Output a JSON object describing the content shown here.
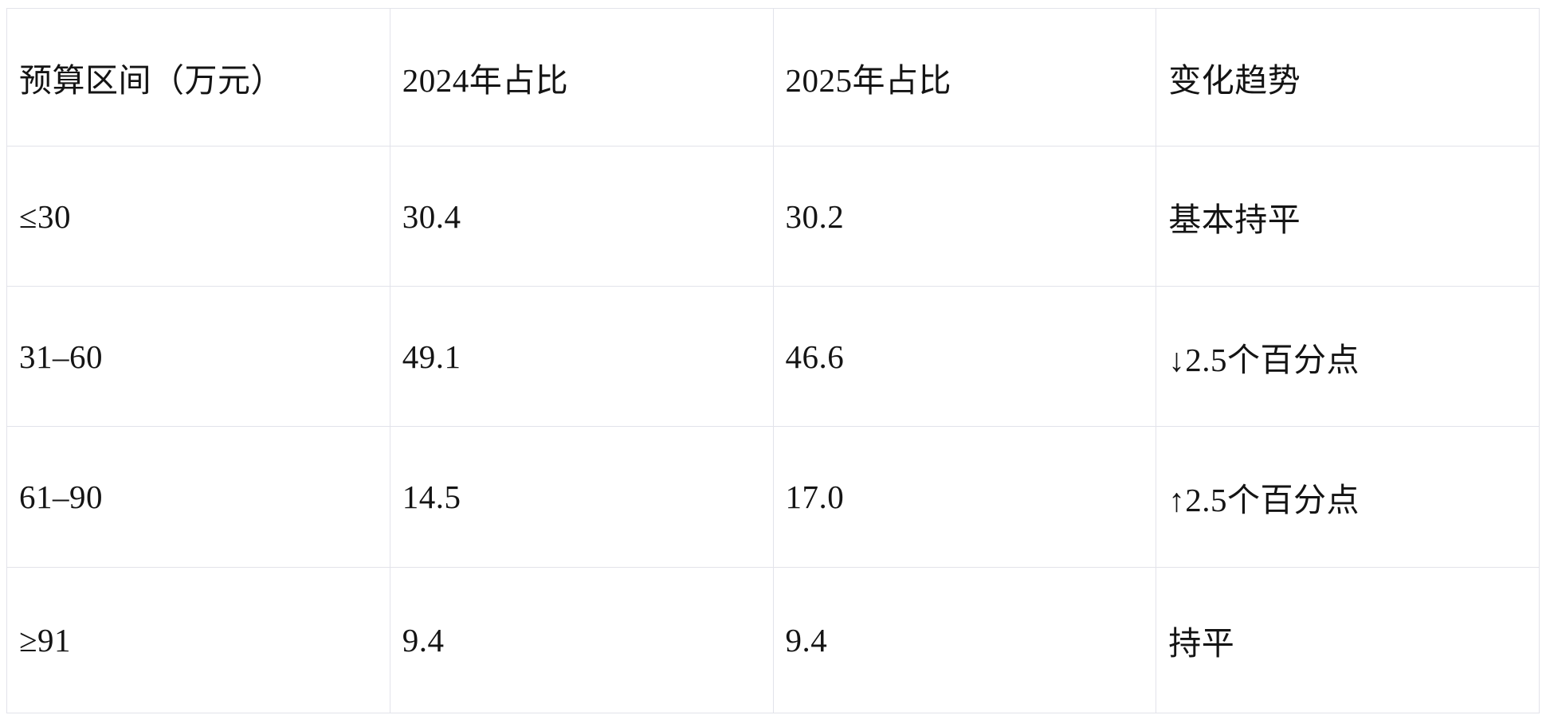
{
  "table": {
    "headers": [
      "预算区间（万元）",
      "2024年占比",
      "2025年占比",
      "变化趋势"
    ],
    "rows": [
      [
        "≤30",
        "30.4",
        "30.2",
        "基本持平"
      ],
      [
        "31–60",
        "49.1",
        "46.6",
        "↓2.5个百分点"
      ],
      [
        "61–90",
        "14.5",
        "17.0",
        "↑2.5个百分点"
      ],
      [
        "≥91",
        "9.4",
        "9.4",
        "持平"
      ]
    ]
  },
  "chart_data": {
    "type": "table",
    "columns": [
      "预算区间（万元）",
      "2024年占比",
      "2025年占比",
      "变化趋势"
    ],
    "rows": [
      [
        "≤30",
        30.4,
        30.2,
        "基本持平"
      ],
      [
        "31–60",
        49.1,
        46.6,
        "↓2.5个百分点"
      ],
      [
        "61–90",
        14.5,
        17.0,
        "↑2.5个百分点"
      ],
      [
        "≥91",
        9.4,
        9.4,
        "持平"
      ]
    ],
    "series": [
      {
        "name": "2024年占比",
        "values": [
          30.4,
          49.1,
          14.5,
          9.4
        ]
      },
      {
        "name": "2025年占比",
        "values": [
          30.2,
          46.6,
          17.0,
          9.4
        ]
      }
    ],
    "categories": [
      "≤30",
      "31–60",
      "61–90",
      "≥91"
    ],
    "emphasized_cells": [
      {
        "row_index": 1,
        "column": "2025年占比",
        "value": 46.6
      },
      {
        "row_index": 2,
        "column": "2025年占比",
        "value": 17.0
      }
    ],
    "title": "",
    "xlabel": "预算区间（万元）",
    "ylabel": "占比"
  },
  "colors": {
    "background": "#ffffff",
    "border": "#e2e3ea",
    "text": "#141414"
  }
}
